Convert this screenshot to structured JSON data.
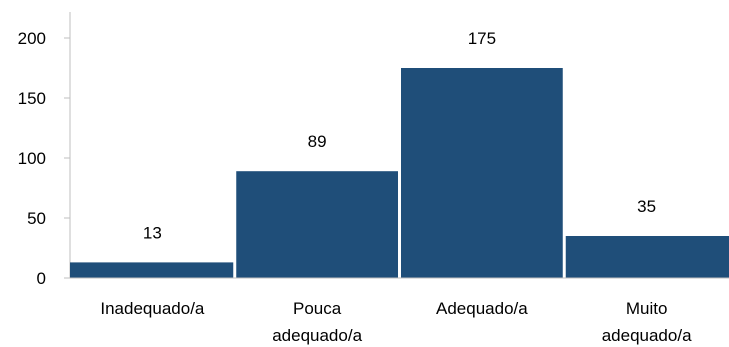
{
  "chart_data": {
    "type": "bar",
    "title": "",
    "xlabel": "",
    "ylabel": "",
    "categories": [
      [
        "Inadequado/a"
      ],
      [
        "Pouca",
        "adequado/a"
      ],
      [
        "Adequado/a"
      ],
      [
        "Muito",
        "adequado/a"
      ]
    ],
    "values": [
      13,
      89,
      175,
      35
    ],
    "data_labels": [
      "13",
      "89",
      "175",
      "35"
    ],
    "ylim": [
      0,
      200
    ],
    "yticks": [
      0,
      50,
      100,
      150,
      200
    ],
    "ytick_labels": [
      "0",
      "50",
      "100",
      "150",
      "200"
    ],
    "grid": false,
    "legend": "none",
    "bar_color": "#1f4e79",
    "axis_color": "#bfbfbf"
  }
}
